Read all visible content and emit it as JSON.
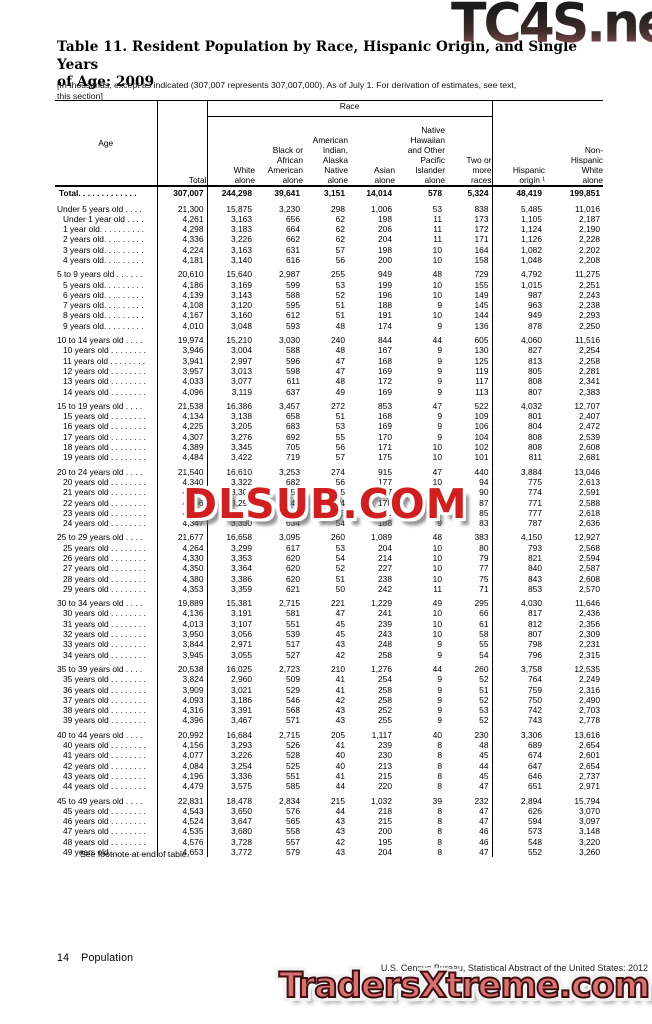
{
  "watermarks": {
    "top": "TC4S.net",
    "middle": "DLSUB.COM",
    "bottom": "TradersXtreme.com",
    "red": "#cf1f1f",
    "salmon": "#d97272"
  },
  "title": "Table 11. Resident Population by Race, Hispanic Origin, and Single Years\nof Age: 2009",
  "note": "[In thousands, except as indicated (307,007 represents 307,007,000). As of July 1. For derivation of estimates, see text,\nthis section]",
  "footnote": "See footnote at end of table.",
  "footer": {
    "page_number": "14",
    "section": "Population",
    "source": "U.S. Census Bureau, Statistical Abstract of the United States: 2012"
  },
  "table": {
    "race_header": "Race",
    "columns": [
      "Age",
      "Total",
      "White\nalone",
      "Black or\nAfrican\nAmerican\nalone",
      "American\nIndian,\nAlaska\nNative\nalone",
      "Asian\nalone",
      "Native\nHawaiian\nand Other\nPacific\nIslander\nalone",
      "Two or\nmore\nraces",
      "Hispanic\norigin ¹",
      "Non-\nHispanic\nWhite\nalone"
    ],
    "rows": [
      {
        "label": "Total. . . . . . . . . . . . .",
        "style": "total",
        "values": [
          "307,007",
          "244,298",
          "39,641",
          "3,151",
          "14,014",
          "578",
          "5,324",
          "48,419",
          "199,851"
        ]
      },
      {
        "label": "Under 5 years old . . . .",
        "style": "group",
        "values": [
          "21,300",
          "15,875",
          "3,230",
          "298",
          "1,006",
          "53",
          "838",
          "5,485",
          "11,016"
        ]
      },
      {
        "label": "Under 1 year old . . . .",
        "style": "item",
        "values": [
          "4,261",
          "3,163",
          "656",
          "62",
          "198",
          "11",
          "173",
          "1,105",
          "2,187"
        ]
      },
      {
        "label": "1 year old. . . . . . . . . .",
        "style": "item",
        "values": [
          "4,298",
          "3,183",
          "664",
          "62",
          "206",
          "11",
          "172",
          "1,124",
          "2,190"
        ]
      },
      {
        "label": "2 years old. . . . . . . . .",
        "style": "item",
        "values": [
          "4,336",
          "3,226",
          "662",
          "62",
          "204",
          "11",
          "171",
          "1,126",
          "2,228"
        ]
      },
      {
        "label": "3 years old. . . . . . . . .",
        "style": "item",
        "values": [
          "4,224",
          "3,163",
          "631",
          "57",
          "198",
          "10",
          "164",
          "1,082",
          "2,202"
        ]
      },
      {
        "label": "4 years old. . . . . . . . .",
        "style": "item",
        "values": [
          "4,181",
          "3,140",
          "616",
          "56",
          "200",
          "10",
          "158",
          "1,048",
          "2,208"
        ]
      },
      {
        "label": "5 to 9 years old . . . . . .",
        "style": "group",
        "values": [
          "20,610",
          "15,640",
          "2,987",
          "255",
          "949",
          "48",
          "729",
          "4,792",
          "11,275"
        ]
      },
      {
        "label": "5 years old. . . . . . . . .",
        "style": "item",
        "values": [
          "4,186",
          "3,169",
          "599",
          "53",
          "199",
          "10",
          "155",
          "1,015",
          "2,251"
        ]
      },
      {
        "label": "6 years old. . . . . . . . .",
        "style": "item",
        "values": [
          "4,139",
          "3,143",
          "588",
          "52",
          "196",
          "10",
          "149",
          "987",
          "2,243"
        ]
      },
      {
        "label": "7 years old. . . . . . . . .",
        "style": "item",
        "values": [
          "4,108",
          "3,120",
          "595",
          "51",
          "188",
          "9",
          "145",
          "963",
          "2,238"
        ]
      },
      {
        "label": "8 years old. . . . . . . . .",
        "style": "item",
        "values": [
          "4,167",
          "3,160",
          "612",
          "51",
          "191",
          "10",
          "144",
          "949",
          "2,293"
        ]
      },
      {
        "label": "9 years old. . . . . . . . .",
        "style": "item",
        "values": [
          "4,010",
          "3,048",
          "593",
          "48",
          "174",
          "9",
          "136",
          "878",
          "2,250"
        ]
      },
      {
        "label": "10 to 14 years old . . . .",
        "style": "group",
        "values": [
          "19,974",
          "15,210",
          "3,030",
          "240",
          "844",
          "44",
          "605",
          "4,060",
          "11,516"
        ]
      },
      {
        "label": "10 years old . . . . . . . .",
        "style": "item",
        "values": [
          "3,946",
          "3,004",
          "588",
          "48",
          "167",
          "9",
          "130",
          "827",
          "2,254"
        ]
      },
      {
        "label": "11 years old . . . . . . . .",
        "style": "item",
        "values": [
          "3,941",
          "2,997",
          "596",
          "47",
          "168",
          "9",
          "125",
          "813",
          "2,258"
        ]
      },
      {
        "label": "12 years old . . . . . . . .",
        "style": "item",
        "values": [
          "3,957",
          "3,013",
          "598",
          "47",
          "169",
          "9",
          "119",
          "805",
          "2,281"
        ]
      },
      {
        "label": "13 years old . . . . . . . .",
        "style": "item",
        "values": [
          "4,033",
          "3,077",
          "611",
          "48",
          "172",
          "9",
          "117",
          "808",
          "2,341"
        ]
      },
      {
        "label": "14 years old . . . . . . . .",
        "style": "item",
        "values": [
          "4,096",
          "3,119",
          "637",
          "49",
          "169",
          "9",
          "113",
          "807",
          "2,383"
        ]
      },
      {
        "label": "15 to 19 years old . . . .",
        "style": "group",
        "values": [
          "21,538",
          "16,386",
          "3,457",
          "272",
          "853",
          "47",
          "522",
          "4,032",
          "12,707"
        ]
      },
      {
        "label": "15 years old . . . . . . . .",
        "style": "item",
        "values": [
          "4,134",
          "3,138",
          "658",
          "51",
          "168",
          "9",
          "109",
          "801",
          "2,407"
        ]
      },
      {
        "label": "16 years old . . . . . . . .",
        "style": "item",
        "values": [
          "4,225",
          "3,205",
          "683",
          "53",
          "169",
          "9",
          "106",
          "804",
          "2,472"
        ]
      },
      {
        "label": "17 years old . . . . . . . .",
        "style": "item",
        "values": [
          "4,307",
          "3,276",
          "692",
          "55",
          "170",
          "9",
          "104",
          "808",
          "2,539"
        ]
      },
      {
        "label": "18 years old . . . . . . . .",
        "style": "item",
        "values": [
          "4,389",
          "3,345",
          "705",
          "56",
          "171",
          "10",
          "102",
          "808",
          "2,608"
        ]
      },
      {
        "label": "19 years old . . . . . . . .",
        "style": "item",
        "values": [
          "4,484",
          "3,422",
          "719",
          "57",
          "175",
          "10",
          "101",
          "811",
          "2,681"
        ]
      },
      {
        "label": "20 to 24 years old . . . .",
        "style": "group",
        "values": [
          "21,540",
          "16,610",
          "3,253",
          "274",
          "915",
          "47",
          "440",
          "3,884",
          "13,046"
        ]
      },
      {
        "label": "20 years old . . . . . . . .",
        "style": "item",
        "values": [
          "4,340",
          "3,322",
          "682",
          "56",
          "177",
          "10",
          "94",
          "775",
          "2,613"
        ]
      },
      {
        "label": "21 years old . . . . . . . .",
        "style": "item",
        "values": [
          "4,291",
          "3,301",
          "659",
          "55",
          "177",
          "9",
          "90",
          "774",
          "2,591"
        ]
      },
      {
        "label": "22 years old . . . . . . . .",
        "style": "item",
        "values": [
          "4,266",
          "3,295",
          "642",
          "54",
          "178",
          "9",
          "87",
          "771",
          "2,588"
        ]
      },
      {
        "label": "23 years old . . . . . . . .",
        "style": "item",
        "values": [
          "4,297",
          "3,302",
          "646",
          "55",
          "180",
          "9",
          "85",
          "777",
          "2,618"
        ]
      },
      {
        "label": "24 years old . . . . . . . .",
        "style": "item",
        "values": [
          "4,347",
          "3,330",
          "634",
          "54",
          "188",
          "9",
          "83",
          "787",
          "2,636"
        ]
      },
      {
        "label": "25 to 29 years old . . . .",
        "style": "group",
        "values": [
          "21,677",
          "16,658",
          "3,095",
          "260",
          "1,089",
          "48",
          "383",
          "4,150",
          "12,927"
        ]
      },
      {
        "label": "25 years old . . . . . . . .",
        "style": "item",
        "values": [
          "4,264",
          "3,299",
          "617",
          "53",
          "204",
          "10",
          "80",
          "793",
          "2,568"
        ]
      },
      {
        "label": "26 years old . . . . . . . .",
        "style": "item",
        "values": [
          "4,330",
          "3,353",
          "620",
          "54",
          "214",
          "10",
          "79",
          "821",
          "2,594"
        ]
      },
      {
        "label": "27 years old . . . . . . . .",
        "style": "item",
        "values": [
          "4,350",
          "3,364",
          "620",
          "52",
          "227",
          "10",
          "77",
          "840",
          "2,587"
        ]
      },
      {
        "label": "28 years old . . . . . . . .",
        "style": "item",
        "values": [
          "4,380",
          "3,386",
          "620",
          "51",
          "238",
          "10",
          "75",
          "843",
          "2,608"
        ]
      },
      {
        "label": "29 years old . . . . . . . .",
        "style": "item",
        "values": [
          "4,353",
          "3,359",
          "621",
          "50",
          "242",
          "11",
          "71",
          "853",
          "2,570"
        ]
      },
      {
        "label": "30 to 34 years old . . . .",
        "style": "group",
        "values": [
          "19,889",
          "15,381",
          "2,715",
          "221",
          "1,229",
          "49",
          "295",
          "4,030",
          "11,646"
        ]
      },
      {
        "label": "30 years old . . . . . . . .",
        "style": "item",
        "values": [
          "4,136",
          "3,191",
          "581",
          "47",
          "241",
          "10",
          "66",
          "817",
          "2,436"
        ]
      },
      {
        "label": "31 years old . . . . . . . .",
        "style": "item",
        "values": [
          "4,013",
          "3,107",
          "551",
          "45",
          "239",
          "10",
          "61",
          "812",
          "2,356"
        ]
      },
      {
        "label": "32 years old . . . . . . . .",
        "style": "item",
        "values": [
          "3,950",
          "3,056",
          "539",
          "45",
          "243",
          "10",
          "58",
          "807",
          "2,309"
        ]
      },
      {
        "label": "33 years old . . . . . . . .",
        "style": "item",
        "values": [
          "3,844",
          "2,971",
          "517",
          "43",
          "248",
          "9",
          "55",
          "798",
          "2,231"
        ]
      },
      {
        "label": "34 years old . . . . . . . .",
        "style": "item",
        "values": [
          "3,945",
          "3,055",
          "527",
          "42",
          "258",
          "9",
          "54",
          "796",
          "2,315"
        ]
      },
      {
        "label": "35 to 39 years old . . . .",
        "style": "group",
        "values": [
          "20,538",
          "16,025",
          "2,723",
          "210",
          "1,276",
          "44",
          "260",
          "3,758",
          "12,535"
        ]
      },
      {
        "label": "35 years old . . . . . . . .",
        "style": "item",
        "values": [
          "3,824",
          "2,960",
          "509",
          "41",
          "254",
          "9",
          "52",
          "764",
          "2,249"
        ]
      },
      {
        "label": "36 years old . . . . . . . .",
        "style": "item",
        "values": [
          "3,909",
          "3,021",
          "529",
          "41",
          "258",
          "9",
          "51",
          "759",
          "2,316"
        ]
      },
      {
        "label": "37 years old . . . . . . . .",
        "style": "item",
        "values": [
          "4,093",
          "3,186",
          "546",
          "42",
          "258",
          "9",
          "52",
          "750",
          "2,490"
        ]
      },
      {
        "label": "38 years old . . . . . . . .",
        "style": "item",
        "values": [
          "4,316",
          "3,391",
          "568",
          "43",
          "252",
          "9",
          "53",
          "742",
          "2,703"
        ]
      },
      {
        "label": "39 years old . . . . . . . .",
        "style": "item",
        "values": [
          "4,396",
          "3,467",
          "571",
          "43",
          "255",
          "9",
          "52",
          "743",
          "2,778"
        ]
      },
      {
        "label": "40 to 44 years old . . . .",
        "style": "group",
        "values": [
          "20,992",
          "16,684",
          "2,715",
          "205",
          "1,117",
          "40",
          "230",
          "3,306",
          "13,616"
        ]
      },
      {
        "label": "40 years old . . . . . . . .",
        "style": "item",
        "values": [
          "4,156",
          "3,293",
          "526",
          "41",
          "239",
          "8",
          "48",
          "689",
          "2,654"
        ]
      },
      {
        "label": "41 years old . . . . . . . .",
        "style": "item",
        "values": [
          "4,077",
          "3,226",
          "528",
          "40",
          "230",
          "8",
          "45",
          "674",
          "2,601"
        ]
      },
      {
        "label": "42 years old . . . . . . . .",
        "style": "item",
        "values": [
          "4,084",
          "3,254",
          "525",
          "40",
          "213",
          "8",
          "44",
          "647",
          "2,654"
        ]
      },
      {
        "label": "43 years old . . . . . . . .",
        "style": "item",
        "values": [
          "4,196",
          "3,336",
          "551",
          "41",
          "215",
          "8",
          "45",
          "646",
          "2,737"
        ]
      },
      {
        "label": "44 years old . . . . . . . .",
        "style": "item",
        "values": [
          "4,479",
          "3,575",
          "585",
          "44",
          "220",
          "8",
          "47",
          "651",
          "2,971"
        ]
      },
      {
        "label": "45 to 49 years old . . . .",
        "style": "group",
        "values": [
          "22,831",
          "18,478",
          "2,834",
          "215",
          "1,032",
          "39",
          "232",
          "2,894",
          "15,794"
        ]
      },
      {
        "label": "45 years old . . . . . . . .",
        "style": "item",
        "values": [
          "4,543",
          "3,650",
          "576",
          "44",
          "218",
          "8",
          "47",
          "626",
          "3,070"
        ]
      },
      {
        "label": "46 years old . . . . . . . .",
        "style": "item",
        "values": [
          "4,524",
          "3,647",
          "565",
          "43",
          "215",
          "8",
          "47",
          "594",
          "3,097"
        ]
      },
      {
        "label": "47 years old . . . . . . . .",
        "style": "item",
        "values": [
          "4,535",
          "3,680",
          "558",
          "43",
          "200",
          "8",
          "46",
          "573",
          "3,148"
        ]
      },
      {
        "label": "48 years old . . . . . . . .",
        "style": "item",
        "values": [
          "4,576",
          "3,728",
          "557",
          "42",
          "195",
          "8",
          "46",
          "548",
          "3,220"
        ]
      },
      {
        "label": "49 years old . . . . . . . .",
        "style": "item",
        "values": [
          "4,653",
          "3,772",
          "579",
          "43",
          "204",
          "8",
          "47",
          "552",
          "3,260"
        ]
      }
    ]
  }
}
